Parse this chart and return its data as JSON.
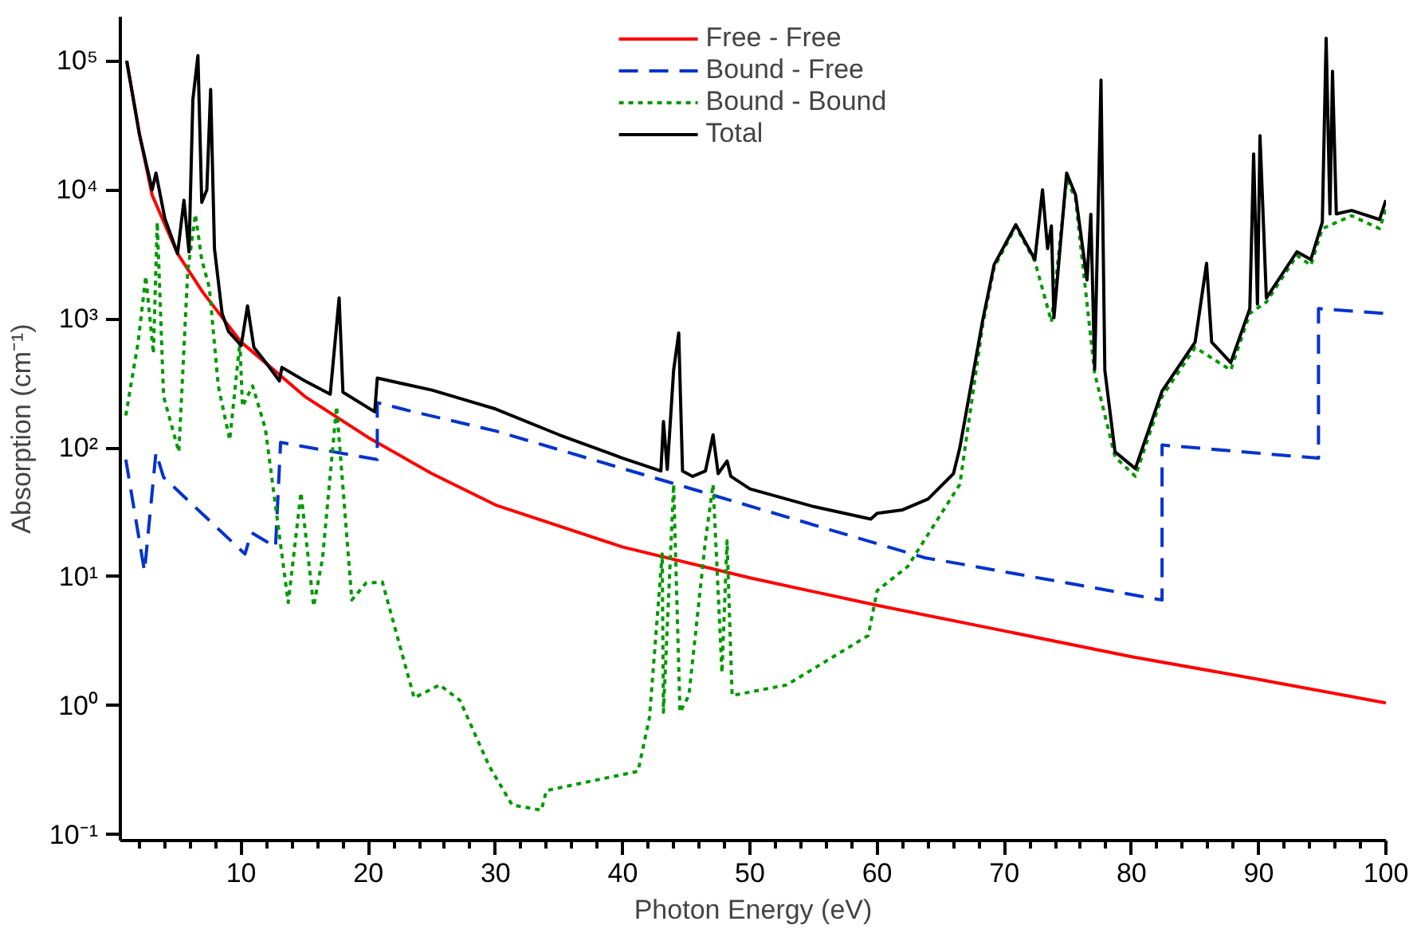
{
  "chart_data": {
    "type": "line",
    "xlabel": "Photon Energy (eV)",
    "ylabel": "Absorption (cm⁻¹)",
    "log": "y",
    "grid": false,
    "legend": "top",
    "marker": "none",
    "xlim": [
      0.5,
      100
    ],
    "ylim": [
      0.09,
      220000
    ],
    "xticks": [
      {
        "value": 2,
        "label": null
      },
      {
        "value": 4,
        "label": null
      },
      {
        "value": 6,
        "label": null
      },
      {
        "value": 8,
        "label": null
      },
      10,
      {
        "value": 12,
        "label": null
      },
      {
        "value": 14,
        "label": null
      },
      {
        "value": 16,
        "label": null
      },
      {
        "value": 18,
        "label": null
      },
      20,
      {
        "value": 22,
        "label": null
      },
      {
        "value": 24,
        "label": null
      },
      {
        "value": 26,
        "label": null
      },
      {
        "value": 28,
        "label": null
      },
      30,
      {
        "value": 32,
        "label": null
      },
      {
        "value": 34,
        "label": null
      },
      {
        "value": 36,
        "label": null
      },
      {
        "value": 38,
        "label": null
      },
      40,
      {
        "value": 42,
        "label": null
      },
      {
        "value": 44,
        "label": null
      },
      {
        "value": 46,
        "label": null
      },
      {
        "value": 48,
        "label": null
      },
      50,
      {
        "value": 52,
        "label": null
      },
      {
        "value": 54,
        "label": null
      },
      {
        "value": 56,
        "label": null
      },
      {
        "value": 58,
        "label": null
      },
      60,
      {
        "value": 62,
        "label": null
      },
      {
        "value": 64,
        "label": null
      },
      {
        "value": 66,
        "label": null
      },
      {
        "value": 68,
        "label": null
      },
      70,
      {
        "value": 72,
        "label": null
      },
      {
        "value": 74,
        "label": null
      },
      {
        "value": 76,
        "label": null
      },
      {
        "value": 78,
        "label": null
      },
      80,
      {
        "value": 82,
        "label": null
      },
      {
        "value": 84,
        "label": null
      },
      {
        "value": 86,
        "label": null
      },
      {
        "value": 88,
        "label": null
      },
      90,
      {
        "value": 92,
        "label": null
      },
      {
        "value": 94,
        "label": null
      },
      {
        "value": 96,
        "label": null
      },
      {
        "value": 98,
        "label": null
      },
      100
    ],
    "yticks": [
      {
        "value": 0.1,
        "label": "10⁻¹"
      },
      {
        "value": 1,
        "label": "10⁰"
      },
      {
        "value": 10,
        "label": "10¹"
      },
      {
        "value": 100,
        "label": "10²"
      },
      {
        "value": 1000,
        "label": "10³"
      },
      {
        "value": 10000,
        "label": "10⁴"
      },
      {
        "value": 100000,
        "label": "10⁵"
      }
    ],
    "series": [
      {
        "name": "Free - Free",
        "color": "#ff0000",
        "line_style": "solid",
        "x": [
          1,
          2,
          3,
          5,
          7,
          10,
          15,
          20,
          25,
          30,
          40,
          50,
          60,
          70,
          80,
          90,
          100
        ],
        "values": [
          100000,
          27000,
          9100,
          3200,
          1600,
          660,
          250,
          120,
          63,
          36,
          17,
          9.8,
          6,
          3.8,
          2.4,
          1.6,
          1.05
        ]
      },
      {
        "name": "Bound - Free",
        "color": "#0033cc",
        "line_style": "dashed",
        "x": [
          0.93,
          2.4,
          3.3,
          3.9,
          10.3,
          10.8,
          12.7,
          13.1,
          20.7,
          20.7,
          23.1,
          30,
          63.8,
          66.5,
          82.4,
          82.4,
          94.7,
          94.7,
          100
        ],
        "values": [
          81,
          11,
          92,
          59,
          15,
          22,
          17,
          110,
          81,
          224,
          195,
          135,
          14,
          12.6,
          6.6,
          105,
          83,
          1200,
          1100
        ]
      },
      {
        "name": "Bound - Bound",
        "color": "#009900",
        "line_style": "dotted",
        "x": [
          0.93,
          1.9,
          2.5,
          3.1,
          3.4,
          3.9,
          5.1,
          5.8,
          6.4,
          6.9,
          7.5,
          8.2,
          9.1,
          9.9,
          10.1,
          10.9,
          11.9,
          13.7,
          14.7,
          15.7,
          16.4,
          17.5,
          18.7,
          19.8,
          21.1,
          23.6,
          25.6,
          27.2,
          29.5,
          31.3,
          33.6,
          34,
          41.2,
          42.1,
          43.1,
          43.2,
          44,
          44.5,
          45.2,
          46.5,
          47.1,
          47.8,
          48.2,
          48.6,
          52.9,
          59.3,
          60,
          62.4,
          66.5,
          68.3,
          69.2,
          70.9,
          72.4,
          73.7,
          74.9,
          75.6,
          77.1,
          78.7,
          80.3,
          82.4,
          85,
          87.8,
          89.3,
          90.6,
          93,
          94.1,
          95,
          97.3,
          99.5,
          100
        ],
        "values": [
          178,
          660,
          2140,
          537,
          5620,
          250,
          93,
          2340,
          6460,
          2880,
          1740,
          302,
          115,
          660,
          209,
          302,
          141,
          6.3,
          45,
          5.9,
          14,
          209,
          6.6,
          8.9,
          9.1,
          1.15,
          1.45,
          1.1,
          0.34,
          0.17,
          0.155,
          0.22,
          0.31,
          0.81,
          15,
          0.89,
          52,
          0.89,
          1.2,
          19,
          52,
          1.8,
          19,
          1.2,
          1.45,
          3.5,
          7.8,
          12,
          52,
          900,
          2500,
          5200,
          2800,
          950,
          12000,
          8500,
          380,
          85,
          60,
          250,
          600,
          400,
          1100,
          1350,
          3100,
          2600,
          5000,
          6300,
          5000,
          7000
        ]
      },
      {
        "name": "Total",
        "color": "#000000",
        "line_style": "solid",
        "x": [
          1,
          2,
          3,
          3.3,
          4,
          5,
          5.5,
          5.9,
          6.2,
          6.6,
          6.9,
          7.3,
          7.6,
          7.9,
          8.5,
          9,
          10,
          10.5,
          11,
          12,
          13,
          13.2,
          15,
          17,
          17.7,
          18,
          20.5,
          20.7,
          25,
          30,
          35,
          40,
          43,
          43.2,
          43.5,
          44,
          44.4,
          44.7,
          45.5,
          46.5,
          47.1,
          47.5,
          48.2,
          48.5,
          50,
          55,
          59.5,
          60,
          62,
          64,
          66,
          66.5,
          68.3,
          69.2,
          70.9,
          72.4,
          73,
          73.4,
          73.7,
          73.9,
          74.9,
          75.6,
          76.5,
          76.8,
          77.1,
          77.6,
          77.9,
          78.7,
          80.3,
          82.4,
          85,
          85.9,
          86.3,
          87.8,
          89.3,
          89.6,
          89.9,
          90.1,
          90.6,
          93,
          94.1,
          95,
          95.3,
          95.6,
          95.8,
          96.1,
          97.3,
          99.5,
          100
        ],
        "values": [
          100000,
          27000,
          10000,
          13500,
          6000,
          3200,
          8300,
          3300,
          50000,
          110000,
          8000,
          10000,
          60000,
          3500,
          1100,
          800,
          620,
          1260,
          600,
          450,
          330,
          420,
          330,
          260,
          1450,
          270,
          190,
          347,
          280,
          200,
          126,
          83,
          66,
          160,
          68,
          400,
          776,
          66,
          60,
          66,
          126,
          63,
          79,
          60,
          48,
          35,
          28,
          31,
          33,
          40,
          63,
          100,
          977,
          2630,
          5370,
          2880,
          10000,
          3500,
          5250,
          1020,
          13500,
          9120,
          2000,
          6460,
          407,
          71000,
          400,
          93,
          69,
          275,
          660,
          2690,
          660,
          457,
          1200,
          19000,
          1300,
          26300,
          1450,
          3310,
          2880,
          5620,
          150000,
          6500,
          83000,
          6500,
          6920,
          5890,
          8320
        ]
      }
    ]
  }
}
